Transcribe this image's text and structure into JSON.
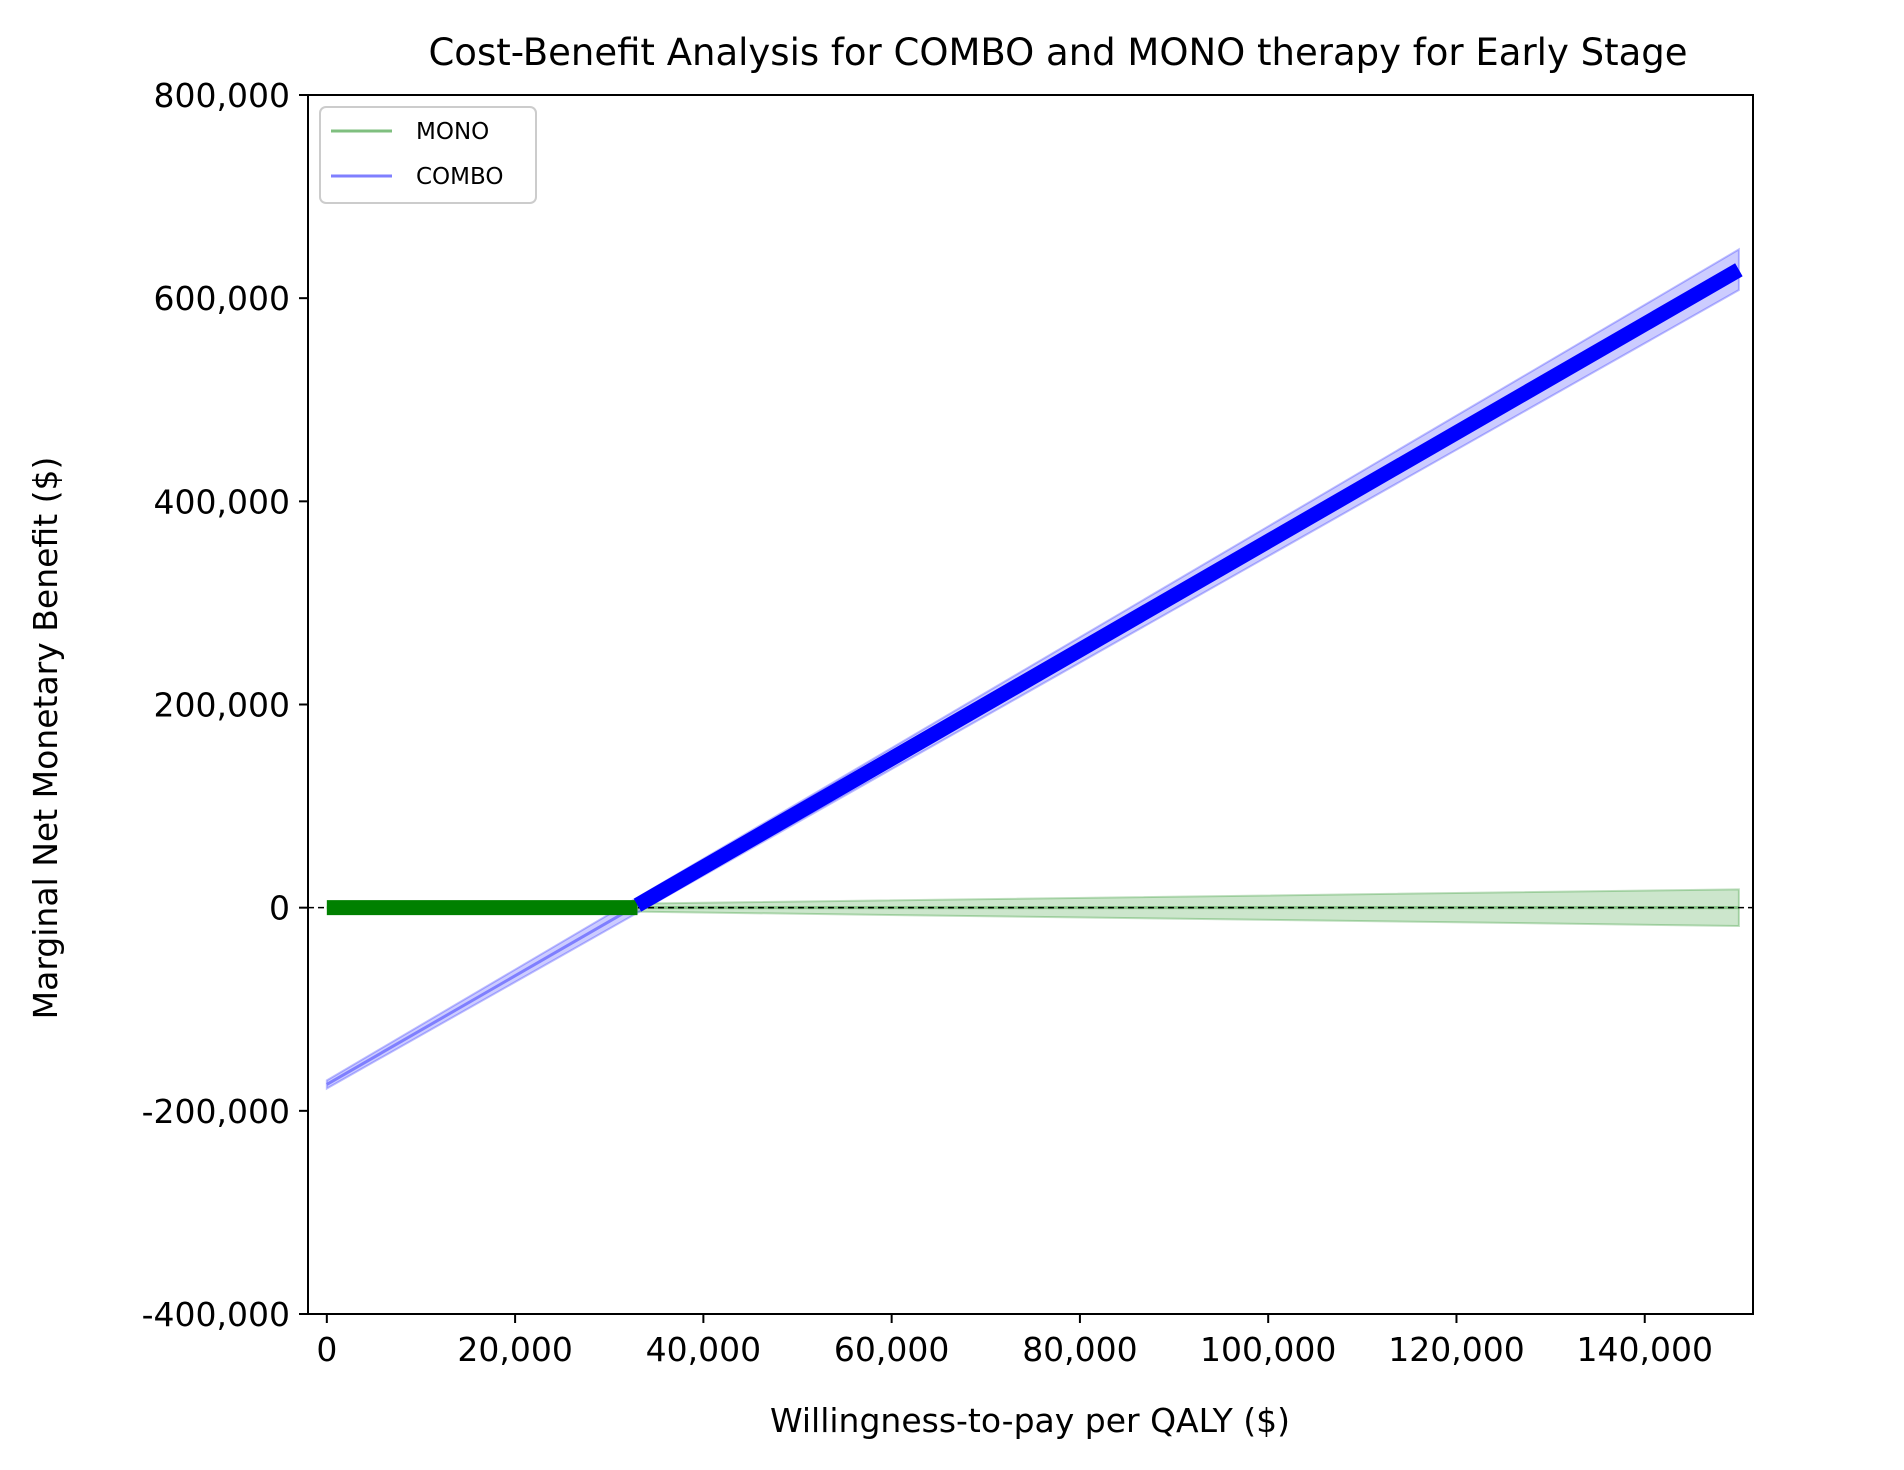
{
  "chart_data": {
    "type": "line",
    "title": "Cost-Benefit Analysis for COMBO and MONO therapy for Early Stage",
    "xlabel": "Willingness-to-pay per QALY ($)",
    "ylabel": "Marginal Net Monetary Benefit ($)",
    "xlim": [
      -2000,
      151500
    ],
    "ylim": [
      -400000,
      800000
    ],
    "x_ticks": [
      0,
      20000,
      40000,
      60000,
      80000,
      100000,
      120000,
      140000
    ],
    "x_tick_labels": [
      "0",
      "20,000",
      "40,000",
      "60,000",
      "80,000",
      "100,000",
      "120,000",
      "140,000"
    ],
    "y_ticks": [
      -400000,
      -200000,
      0,
      200000,
      400000,
      600000,
      800000
    ],
    "y_tick_labels": [
      "-400,000",
      "-200,000",
      "0",
      "200,000",
      "400,000",
      "600,000",
      "800,000"
    ],
    "grid": false,
    "legend_position": "upper-left",
    "reference_line": {
      "y": 0,
      "style": "dashed",
      "color": "#000000"
    },
    "crossover_x": 33000,
    "series": [
      {
        "name": "MONO",
        "color": "#008000",
        "legend_color": "#7fbf7f",
        "x": [
          0,
          150000
        ],
        "y": [
          0,
          0
        ],
        "ci_lower": [
          0,
          -18000
        ],
        "ci_upper": [
          0,
          18000
        ]
      },
      {
        "name": "COMBO",
        "color": "#0000ff",
        "legend_color": "#7f7fff",
        "x": [
          0,
          150000
        ],
        "y": [
          -174000,
          628000
        ],
        "ci_lower": [
          -178000,
          608000
        ],
        "ci_upper": [
          -170000,
          648000
        ]
      }
    ]
  }
}
